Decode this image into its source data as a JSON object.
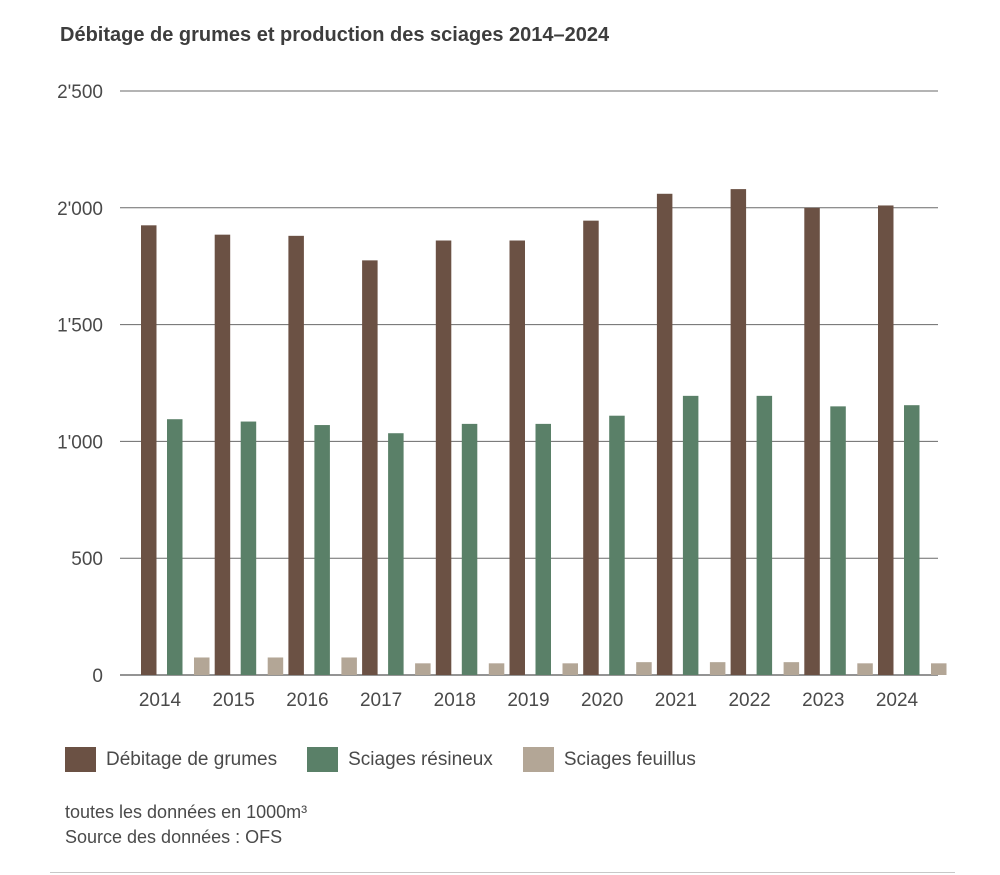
{
  "title": "Débitage de grumes et production des sciages 2014–2024",
  "chart_data": {
    "type": "bar",
    "title": "Débitage de grumes et production des sciages 2014–2024",
    "xlabel": "",
    "ylabel": "",
    "ylim": [
      0,
      2500
    ],
    "yticks": [
      0,
      500,
      1000,
      1500,
      2000,
      2500
    ],
    "ytick_labels": [
      "0",
      "500",
      "1'000",
      "1'500",
      "2'000",
      "2'500"
    ],
    "grid": true,
    "legend_position": "bottom",
    "categories": [
      "2014",
      "2015",
      "2016",
      "2017",
      "2018",
      "2019",
      "2020",
      "2021",
      "2022",
      "2023",
      "2024"
    ],
    "series": [
      {
        "name": "Débitage de grumes",
        "color": "#6b5144",
        "values": [
          1925,
          1885,
          1880,
          1775,
          1860,
          1860,
          1945,
          2060,
          2080,
          2000,
          2010
        ]
      },
      {
        "name": "Sciages résineux",
        "color": "#5a8068",
        "values": [
          1095,
          1085,
          1070,
          1035,
          1075,
          1075,
          1110,
          1195,
          1195,
          1150,
          1155
        ]
      },
      {
        "name": "Sciages feuillus",
        "color": "#b3a696",
        "values": [
          75,
          75,
          75,
          50,
          50,
          50,
          55,
          55,
          55,
          50,
          50
        ]
      }
    ]
  },
  "notes": {
    "units": "toutes les données en 1000m³",
    "source": "Source des données : OFS"
  }
}
